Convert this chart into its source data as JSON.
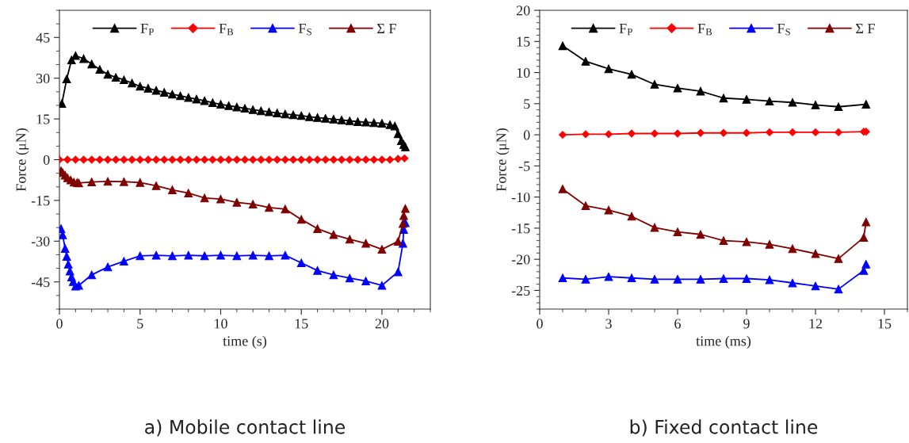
{
  "chart_data": [
    {
      "type": "line",
      "xlabel": "time (s)",
      "ylabel": "Force (μN)",
      "xlim": [
        0,
        23
      ],
      "ylim": [
        -55,
        55
      ],
      "xticks": [
        0,
        5,
        10,
        15,
        20
      ],
      "yticks": [
        -45,
        -30,
        -15,
        0,
        15,
        30,
        45
      ],
      "legend": "top",
      "line_style": "solid",
      "grid": false,
      "annotations": [
        "a) Mobile contact line"
      ],
      "series": [
        {
          "name": "F$_{P}$",
          "color": "#000000",
          "marker": "triangle",
          "x": [
            0.15,
            0.45,
            0.75,
            1,
            1.5,
            2,
            2.5,
            3,
            3.5,
            4,
            4.5,
            5,
            5.5,
            6,
            6.5,
            7,
            7.5,
            8,
            8.5,
            9,
            9.5,
            10,
            10.5,
            11,
            11.5,
            12,
            12.5,
            13,
            13.5,
            14,
            14.5,
            15,
            15.5,
            16,
            16.5,
            17,
            17.5,
            18,
            18.5,
            19,
            19.5,
            20,
            20.5,
            20.8,
            21.0,
            21.2,
            21.35,
            21.45
          ],
          "values": [
            20.7,
            29.7,
            36.7,
            38.3,
            37.2,
            35.2,
            33.2,
            31.4,
            30.3,
            29.4,
            28.2,
            27.0,
            26.3,
            25.5,
            24.8,
            24.1,
            23.5,
            22.9,
            22.3,
            21.7,
            21.0,
            20.4,
            19.9,
            19.4,
            18.9,
            18.4,
            18.0,
            17.6,
            17.2,
            16.8,
            16.5,
            16.2,
            15.8,
            15.5,
            15.2,
            14.9,
            14.6,
            14.3,
            14.0,
            13.8,
            13.6,
            13.4,
            12.9,
            12.4,
            9.5,
            7.0,
            5.6,
            4.7
          ]
        },
        {
          "name": "F$_{B}$",
          "color": "#ff0000",
          "marker": "diamond",
          "x": [
            0,
            0.5,
            1,
            1.5,
            2,
            2.5,
            3,
            3.5,
            4,
            4.5,
            5,
            5.5,
            6,
            6.5,
            7,
            7.5,
            8,
            8.5,
            9,
            9.5,
            10,
            10.5,
            11,
            11.5,
            12,
            12.5,
            13,
            13.5,
            14,
            14.5,
            15,
            15.5,
            16,
            16.5,
            17,
            17.5,
            18,
            18.5,
            19,
            19.5,
            20,
            20.5,
            21,
            21.4
          ],
          "values": [
            0,
            0,
            0,
            0,
            0,
            0,
            0,
            0,
            0,
            0,
            0,
            0,
            0,
            0,
            0,
            0,
            0,
            0,
            0,
            0,
            0,
            0,
            0,
            0,
            0,
            0,
            0,
            0,
            0,
            0,
            0,
            0,
            0,
            0,
            0,
            0,
            0,
            0,
            0,
            0,
            0,
            0,
            0.3,
            0.5
          ]
        },
        {
          "name": "F$_{S}$",
          "color": "#0000ff",
          "marker": "triangle",
          "x": [
            0.1,
            0.2,
            0.35,
            0.45,
            0.55,
            0.65,
            0.75,
            0.85,
            1.0,
            1.2,
            2,
            3,
            4,
            5,
            6,
            7,
            8,
            9,
            10,
            11,
            12,
            13,
            14,
            15,
            16,
            17,
            18,
            19,
            20,
            21,
            21.3,
            21.35,
            21.45
          ],
          "values": [
            -25.4,
            -27.7,
            -32.7,
            -35.6,
            -38.5,
            -41.0,
            -43.2,
            -44.9,
            -46.6,
            -46.3,
            -42.4,
            -39.5,
            -37.4,
            -35.4,
            -35.2,
            -35.4,
            -35.2,
            -35.4,
            -35.2,
            -35.4,
            -35.2,
            -35.4,
            -35.2,
            -38.0,
            -40.8,
            -42.4,
            -43.6,
            -44.7,
            -46.3,
            -41.3,
            -30.8,
            -25.7,
            -23.2
          ]
        },
        {
          "name": "Σ F",
          "color": "#800000",
          "marker": "triangle",
          "x": [
            0.1,
            0.2,
            0.35,
            0.5,
            0.7,
            0.9,
            1.1,
            1.2,
            2,
            3,
            4,
            5,
            6,
            7,
            8,
            9,
            10,
            11,
            12,
            13,
            14,
            15,
            16,
            17,
            18,
            19,
            20,
            21,
            21.3,
            21.35,
            21.45
          ],
          "values": [
            -4.1,
            -4.8,
            -5.7,
            -6.7,
            -7.5,
            -8.3,
            -8.4,
            -8.6,
            -8.2,
            -8.0,
            -8.1,
            -8.4,
            -9.6,
            -11.1,
            -12.3,
            -14.1,
            -14.5,
            -15.7,
            -16.4,
            -17.6,
            -18.2,
            -22.0,
            -25.4,
            -27.6,
            -29.3,
            -30.8,
            -33.0,
            -30.1,
            -23.5,
            -20.6,
            -18.0
          ]
        }
      ]
    },
    {
      "type": "line",
      "xlabel": "time (ms)",
      "ylabel": "Force (μN)",
      "xlim": [
        0,
        16
      ],
      "ylim": [
        -28,
        20
      ],
      "xticks": [
        0,
        3,
        6,
        9,
        12,
        15
      ],
      "yticks": [
        -25,
        -20,
        -15,
        -10,
        -5,
        0,
        5,
        10,
        15,
        20
      ],
      "legend": "top",
      "line_style": "solid",
      "grid": false,
      "annotations": [
        "b) Fixed contact line"
      ],
      "series": [
        {
          "name": "F$_{P}$",
          "color": "#000000",
          "marker": "triangle",
          "x": [
            1,
            2,
            3,
            4,
            5,
            6,
            7,
            8,
            9,
            10,
            11,
            12,
            13,
            14.2
          ],
          "values": [
            14.3,
            11.8,
            10.6,
            9.7,
            8.1,
            7.5,
            7.0,
            5.9,
            5.7,
            5.4,
            5.2,
            4.8,
            4.5,
            4.9
          ]
        },
        {
          "name": "F$_{B}$",
          "color": "#ff0000",
          "marker": "diamond",
          "x": [
            1,
            2,
            3,
            4,
            5,
            6,
            7,
            8,
            9,
            10,
            11,
            12,
            13,
            14.1,
            14.2
          ],
          "values": [
            0,
            0.1,
            0.1,
            0.2,
            0.2,
            0.2,
            0.3,
            0.3,
            0.3,
            0.4,
            0.4,
            0.4,
            0.4,
            0.5,
            0.5
          ]
        },
        {
          "name": "F$_{S}$",
          "color": "#0000ff",
          "marker": "triangle",
          "x": [
            1,
            2,
            3,
            4,
            5,
            6,
            7,
            8,
            9,
            10,
            11,
            12,
            13,
            14.1,
            14.2
          ],
          "values": [
            -23.0,
            -23.2,
            -22.8,
            -23.0,
            -23.2,
            -23.2,
            -23.2,
            -23.1,
            -23.1,
            -23.3,
            -23.8,
            -24.3,
            -24.8,
            -21.8,
            -20.8
          ]
        },
        {
          "name": "Σ F",
          "color": "#800000",
          "marker": "triangle",
          "x": [
            1,
            2,
            3,
            4,
            5,
            6,
            7,
            8,
            9,
            10,
            11,
            12,
            13,
            14.1,
            14.2
          ],
          "values": [
            -8.7,
            -11.4,
            -12.1,
            -13.1,
            -14.9,
            -15.6,
            -16.0,
            -17.0,
            -17.2,
            -17.6,
            -18.3,
            -19.1,
            -19.9,
            -16.5,
            -14.0
          ]
        }
      ]
    }
  ]
}
